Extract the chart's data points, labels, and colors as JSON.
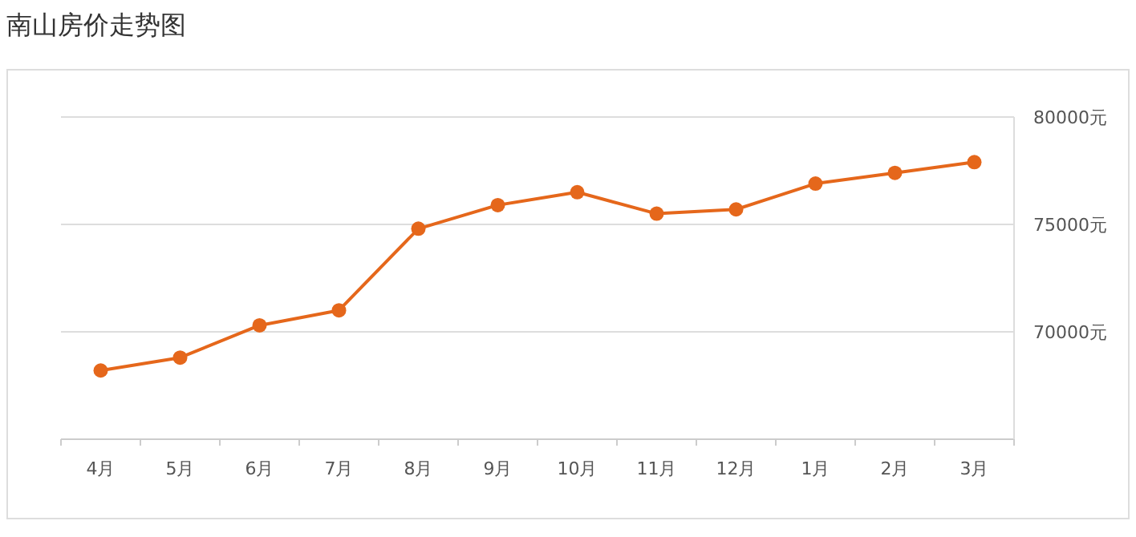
{
  "chart_data": {
    "type": "line",
    "title": "南山房价走势图",
    "categories": [
      "4月",
      "5月",
      "6月",
      "7月",
      "8月",
      "9月",
      "10月",
      "11月",
      "12月",
      "1月",
      "2月",
      "3月"
    ],
    "values": [
      68200,
      68800,
      70300,
      71000,
      74800,
      75900,
      76500,
      75500,
      75700,
      76900,
      77400,
      77900
    ],
    "color": "#e5671b",
    "marker": "circle",
    "grid": "y",
    "ylim": [
      65000,
      80000
    ],
    "yticks": [
      {
        "value": 70000,
        "label": "70000元"
      },
      {
        "value": 75000,
        "label": "75000元"
      },
      {
        "value": 80000,
        "label": "80000元"
      }
    ]
  }
}
